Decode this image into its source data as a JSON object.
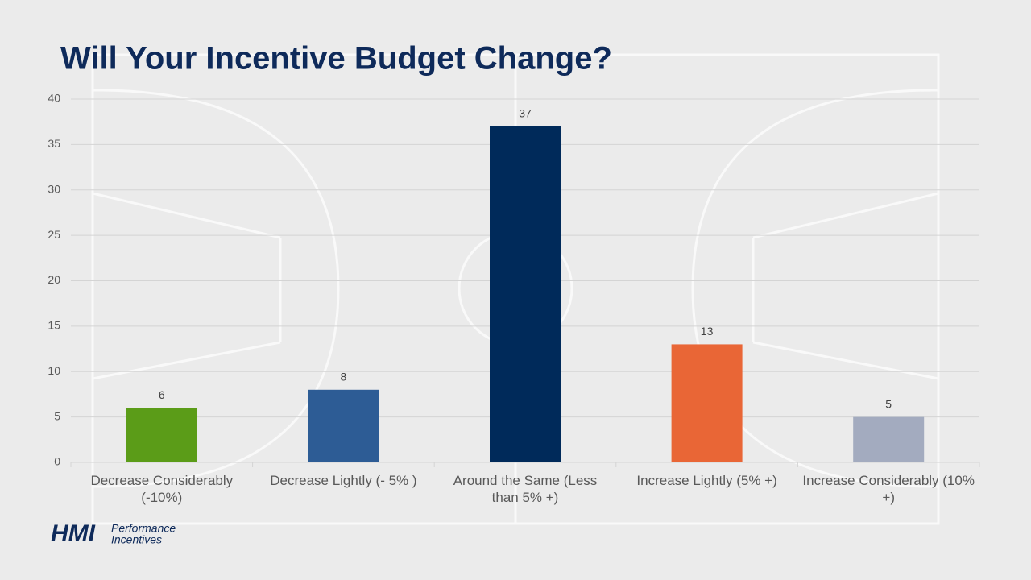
{
  "chart_data": {
    "type": "bar",
    "title": "Will Your Incentive Budget Change?",
    "categories": [
      "Decrease Considerably (-10%)",
      "Decrease Lightly (-  5% )",
      "Around the Same (Less than 5% +)",
      "Increase Lightly (5% +)",
      "Increase Considerably (10% +)"
    ],
    "values": [
      6,
      8,
      37,
      13,
      5
    ],
    "colors": [
      "#5b9c18",
      "#2d5c95",
      "#002a5a",
      "#e96636",
      "#a3abbf"
    ],
    "ylim": [
      0,
      40
    ],
    "yticks": [
      0,
      5,
      10,
      15,
      20,
      25,
      30,
      35,
      40
    ],
    "grid": true
  },
  "logo": {
    "mark": "HMI",
    "lines": [
      "Performance",
      "Incentives"
    ]
  }
}
